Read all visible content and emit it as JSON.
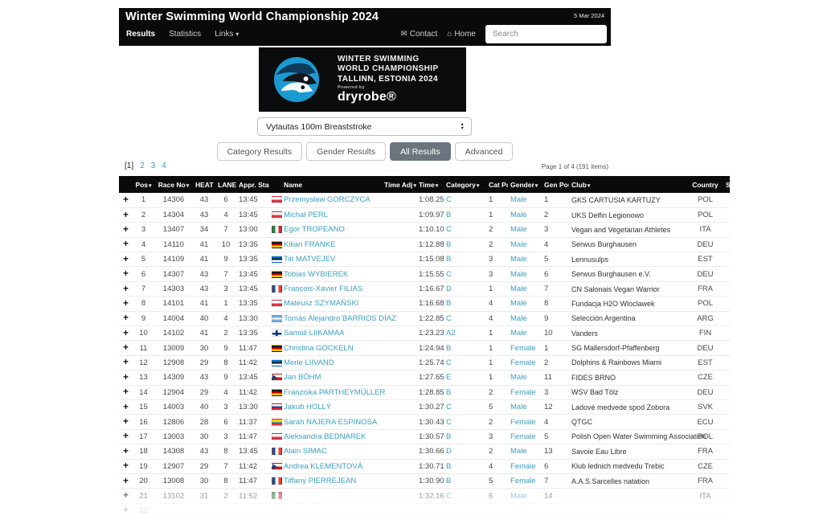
{
  "topbar": {
    "title": "Winter Swimming World Championship 2024",
    "date": "5 Mar 2024",
    "nav": [
      {
        "label": "Results",
        "active": true
      },
      {
        "label": "Statistics",
        "active": false
      },
      {
        "label": "Links",
        "active": false,
        "caret": true
      }
    ],
    "contact_label": "Contact",
    "home_label": "Home",
    "search_placeholder": "Search"
  },
  "banner": {
    "line1": "WINTER SWIMMING",
    "line2": "WORLD CHAMPIONSHIP",
    "line3": "TALLINN, ESTONIA 2024",
    "powered_by": "Powered by",
    "brand": "dryrobe®"
  },
  "event_select": {
    "value": "Vytautas 100m Breaststroke"
  },
  "result_tabs": [
    {
      "label": "Category Results",
      "active": false
    },
    {
      "label": "Gender Results",
      "active": false
    },
    {
      "label": "All Results",
      "active": true
    },
    {
      "label": "Advanced",
      "active": false
    }
  ],
  "pagination": {
    "current": "[1]",
    "pages": [
      "2",
      "3",
      "4"
    ],
    "summary": "Page 1 of 4 (191 items)"
  },
  "colors": {
    "link": "#3b9fc1",
    "header_bg": "#0b0b0b",
    "selected_tab_bg": "#6c757d"
  },
  "table": {
    "columns": [
      {
        "label": "",
        "sortable": false
      },
      {
        "label": "Pos",
        "sortable": true
      },
      {
        "label": "Race No",
        "sortable": true
      },
      {
        "label": "HEAT",
        "sortable": false
      },
      {
        "label": "LANE",
        "sortable": false
      },
      {
        "label": "Appr. Start",
        "sortable": false
      },
      {
        "label": "",
        "sortable": false
      },
      {
        "label": "Name",
        "sortable": false
      },
      {
        "label": "Time Adj",
        "sortable": true
      },
      {
        "label": "Time",
        "sortable": true
      },
      {
        "label": "Category",
        "sortable": true
      },
      {
        "label": "Cat Pos",
        "sortable": false
      },
      {
        "label": "Gender",
        "sortable": true
      },
      {
        "label": "Gen Pos",
        "sortable": false
      },
      {
        "label": "Club",
        "sortable": true
      },
      {
        "label": "Country",
        "sortable": false
      },
      {
        "label": "S",
        "sortable": false
      }
    ],
    "rows": [
      {
        "pos": "1",
        "race_no": "14306",
        "heat": "43",
        "lane": "6",
        "appr_start": "13:45",
        "flag": "pol",
        "name": "Przemysław GORCZYCA",
        "time_adj": "",
        "time": "1:08.25",
        "category": "C",
        "cat_pos": "1",
        "gender": "Male",
        "gen_pos": "1",
        "club": "GKS CARTUSIA KARTUZY",
        "country": "POL"
      },
      {
        "pos": "2",
        "race_no": "14304",
        "heat": "43",
        "lane": "4",
        "appr_start": "13:45",
        "flag": "pol",
        "name": "Michał PERL",
        "time_adj": "",
        "time": "1:09.97",
        "category": "B",
        "cat_pos": "1",
        "gender": "Male",
        "gen_pos": "2",
        "club": "UKS Delfin Legionowo",
        "country": "POL"
      },
      {
        "pos": "3",
        "race_no": "13407",
        "heat": "34",
        "lane": "7",
        "appr_start": "13:00",
        "flag": "ita",
        "name": "Egor TROPEANO",
        "time_adj": "",
        "time": "1:10.10",
        "category": "C",
        "cat_pos": "2",
        "gender": "Male",
        "gen_pos": "3",
        "club": "Vegan and Vegetarian Athletes",
        "country": "ITA"
      },
      {
        "pos": "4",
        "race_no": "14110",
        "heat": "41",
        "lane": "10",
        "appr_start": "13:35",
        "flag": "deu",
        "name": "Kilian FRANKE",
        "time_adj": "",
        "time": "1:12.88",
        "category": "B",
        "cat_pos": "2",
        "gender": "Male",
        "gen_pos": "4",
        "club": "Serwus Burghausen",
        "country": "DEU"
      },
      {
        "pos": "5",
        "race_no": "14109",
        "heat": "41",
        "lane": "9",
        "appr_start": "13:35",
        "flag": "est",
        "name": "Tiit MATVEJEV",
        "time_adj": "",
        "time": "1:15.08",
        "category": "B",
        "cat_pos": "3",
        "gender": "Male",
        "gen_pos": "5",
        "club": "Lennusulps",
        "country": "EST"
      },
      {
        "pos": "6",
        "race_no": "14307",
        "heat": "43",
        "lane": "7",
        "appr_start": "13:45",
        "flag": "deu",
        "name": "Tobias WYBIEREK",
        "time_adj": "",
        "time": "1:15.55",
        "category": "C",
        "cat_pos": "3",
        "gender": "Male",
        "gen_pos": "6",
        "club": "Serwus Burghausen e.V.",
        "country": "DEU"
      },
      {
        "pos": "7",
        "race_no": "14303",
        "heat": "43",
        "lane": "3",
        "appr_start": "13:45",
        "flag": "fra",
        "name": "Francois-Xavier FILIAS",
        "time_adj": "",
        "time": "1:16.67",
        "category": "D",
        "cat_pos": "1",
        "gender": "Male",
        "gen_pos": "7",
        "club": "CN Salonais Vegan Warrior",
        "country": "FRA"
      },
      {
        "pos": "8",
        "race_no": "14101",
        "heat": "41",
        "lane": "1",
        "appr_start": "13:35",
        "flag": "pol",
        "name": "Mateusz SZYMAŃSKI",
        "time_adj": "",
        "time": "1:16.68",
        "category": "B",
        "cat_pos": "4",
        "gender": "Male",
        "gen_pos": "8",
        "club": "Fundacja H2O Wloclawek",
        "country": "POL"
      },
      {
        "pos": "9",
        "race_no": "14004",
        "heat": "40",
        "lane": "4",
        "appr_start": "13:30",
        "flag": "arg",
        "name": "Tomás Alejandro BARRIOS DÍAZ",
        "time_adj": "",
        "time": "1:22.85",
        "category": "C",
        "cat_pos": "4",
        "gender": "Male",
        "gen_pos": "9",
        "club": "Selección Argentina",
        "country": "ARG"
      },
      {
        "pos": "10",
        "race_no": "14102",
        "heat": "41",
        "lane": "2",
        "appr_start": "13:35",
        "flag": "fin",
        "name": "Samuli LIIKAMAA",
        "time_adj": "",
        "time": "1:23.23",
        "category": "A2",
        "cat_pos": "1",
        "gender": "Male",
        "gen_pos": "10",
        "club": "Vanders",
        "country": "FIN"
      },
      {
        "pos": "11",
        "race_no": "13009",
        "heat": "30",
        "lane": "9",
        "appr_start": "11:47",
        "flag": "deu",
        "name": "Christina GOCKELN",
        "time_adj": "",
        "time": "1:24.94",
        "category": "B",
        "cat_pos": "1",
        "gender": "Female",
        "gen_pos": "1",
        "club": "SG Mallersdorf-Pfaffenberg",
        "country": "DEU"
      },
      {
        "pos": "12",
        "race_no": "12908",
        "heat": "29",
        "lane": "8",
        "appr_start": "11:42",
        "flag": "est",
        "name": "Merle LIIVAND",
        "time_adj": "",
        "time": "1:25.74",
        "category": "C",
        "cat_pos": "1",
        "gender": "Female",
        "gen_pos": "2",
        "club": "Dolphins & Rainbows Miami",
        "country": "EST"
      },
      {
        "pos": "13",
        "race_no": "14309",
        "heat": "43",
        "lane": "9",
        "appr_start": "13:45",
        "flag": "cze",
        "name": "Jan BÖHM",
        "time_adj": "",
        "time": "1:27.65",
        "category": "E",
        "cat_pos": "1",
        "gender": "Male",
        "gen_pos": "11",
        "club": "FIDES BRNO",
        "country": "CZE"
      },
      {
        "pos": "14",
        "race_no": "12904",
        "heat": "29",
        "lane": "4",
        "appr_start": "11:42",
        "flag": "deu",
        "name": "Franziska PARTHEYMÜLLER",
        "time_adj": "",
        "time": "1:28.85",
        "category": "B",
        "cat_pos": "2",
        "gender": "Female",
        "gen_pos": "3",
        "club": "WSV Bad Tölz",
        "country": "DEU"
      },
      {
        "pos": "15",
        "race_no": "14003",
        "heat": "40",
        "lane": "3",
        "appr_start": "13:30",
        "flag": "svk",
        "name": "Jakub HOLLÝ",
        "time_adj": "",
        "time": "1:30.27",
        "category": "C",
        "cat_pos": "5",
        "gender": "Male",
        "gen_pos": "12",
        "club": "Ladové medvede spod Zobora",
        "country": "SVK"
      },
      {
        "pos": "16",
        "race_no": "12806",
        "heat": "28",
        "lane": "6",
        "appr_start": "11:37",
        "flag": "ecu",
        "name": "Sarah NAJERA ESPINOSA",
        "time_adj": "",
        "time": "1:30.43",
        "category": "C",
        "cat_pos": "2",
        "gender": "Female",
        "gen_pos": "4",
        "club": "QTGC",
        "country": "ECU"
      },
      {
        "pos": "17",
        "race_no": "13003",
        "heat": "30",
        "lane": "3",
        "appr_start": "11:47",
        "flag": "pol",
        "name": "Aleksandra BEDNAREK",
        "time_adj": "",
        "time": "1:30.57",
        "category": "B",
        "cat_pos": "3",
        "gender": "Female",
        "gen_pos": "5",
        "club": "Polish Open Water Swimming Association",
        "country": "POL"
      },
      {
        "pos": "18",
        "race_no": "14308",
        "heat": "43",
        "lane": "8",
        "appr_start": "13:45",
        "flag": "fra",
        "name": "Alain SIMAC",
        "time_adj": "",
        "time": "1:30.66",
        "category": "D",
        "cat_pos": "2",
        "gender": "Male",
        "gen_pos": "13",
        "club": "Savoie Eau Libre",
        "country": "FRA"
      },
      {
        "pos": "19",
        "race_no": "12907",
        "heat": "29",
        "lane": "7",
        "appr_start": "11:42",
        "flag": "cze",
        "name": "Andrea KLEMENTOVÁ",
        "time_adj": "",
        "time": "1:30.71",
        "category": "B",
        "cat_pos": "4",
        "gender": "Female",
        "gen_pos": "6",
        "club": "Klub lednich medvedu Trebic",
        "country": "CZE"
      },
      {
        "pos": "20",
        "race_no": "13008",
        "heat": "30",
        "lane": "8",
        "appr_start": "11:47",
        "flag": "fra",
        "name": "Tiffany PIERREJEAN",
        "time_adj": "",
        "time": "1:30.90",
        "category": "B",
        "cat_pos": "5",
        "gender": "Female",
        "gen_pos": "7",
        "club": "A.A.S.Sarcelles natation",
        "country": "FRA"
      },
      {
        "pos": "21",
        "race_no": "13102",
        "heat": "31",
        "lane": "2",
        "appr_start": "11:52",
        "flag": "ita",
        "name": "",
        "time_adj": "",
        "time": "1:32.16",
        "category": "C",
        "cat_pos": "6",
        "gender": "Male",
        "gen_pos": "14",
        "club": "",
        "country": "ITA",
        "faded": true
      },
      {
        "pos": "22",
        "race_no": "",
        "heat": "",
        "lane": "",
        "appr_start": "",
        "flag": "",
        "name": "",
        "time_adj": "",
        "time": "",
        "category": "",
        "cat_pos": "",
        "gender": "",
        "gen_pos": "",
        "club": "",
        "country": "",
        "faded": true
      }
    ]
  }
}
